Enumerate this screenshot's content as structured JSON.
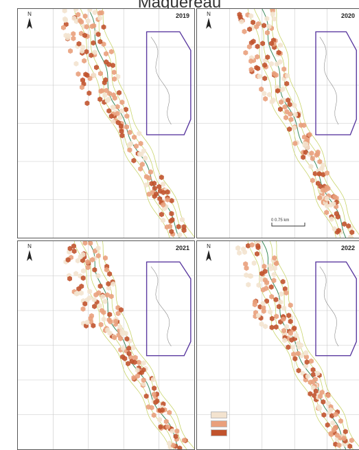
{
  "title": "Maquereau",
  "panels": [
    {
      "year": "2019",
      "north": "N"
    },
    {
      "year": "2020",
      "north": "N",
      "scale_label": "0    0.75 km"
    },
    {
      "year": "2021",
      "north": "N"
    },
    {
      "year": "2022",
      "north": "N"
    }
  ],
  "colors": {
    "class1": "#f3e3cf",
    "class2": "#e9a07c",
    "class3": "#c1532d",
    "zone_outline": "#5b3aa0",
    "coast": "#c8d46a",
    "channel": "#3a8a5a"
  },
  "legend_swatches": [
    "class1",
    "class2",
    "class3"
  ]
}
